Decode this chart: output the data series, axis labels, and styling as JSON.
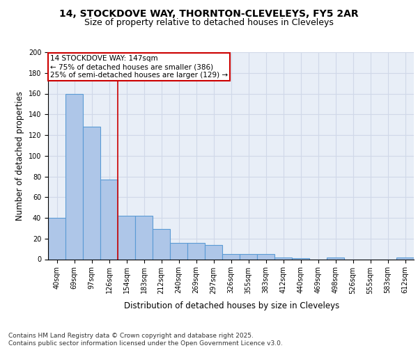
{
  "title1": "14, STOCKDOVE WAY, THORNTON-CLEVELEYS, FY5 2AR",
  "title2": "Size of property relative to detached houses in Cleveleys",
  "xlabel": "Distribution of detached houses by size in Cleveleys",
  "ylabel": "Number of detached properties",
  "categories": [
    "40sqm",
    "69sqm",
    "97sqm",
    "126sqm",
    "154sqm",
    "183sqm",
    "212sqm",
    "240sqm",
    "269sqm",
    "297sqm",
    "326sqm",
    "355sqm",
    "383sqm",
    "412sqm",
    "440sqm",
    "469sqm",
    "498sqm",
    "526sqm",
    "555sqm",
    "583sqm",
    "612sqm"
  ],
  "values": [
    40,
    160,
    128,
    77,
    42,
    42,
    29,
    16,
    16,
    14,
    5,
    5,
    5,
    2,
    1,
    0,
    2,
    0,
    0,
    0,
    2
  ],
  "bar_color": "#aec6e8",
  "bar_edge_color": "#5b9bd5",
  "bar_linewidth": 0.8,
  "vline_x": 3.5,
  "vline_color": "#cc0000",
  "annotation_text": "14 STOCKDOVE WAY: 147sqm\n← 75% of detached houses are smaller (386)\n25% of semi-detached houses are larger (129) →",
  "annotation_box_color": "#cc0000",
  "ylim": [
    0,
    200
  ],
  "yticks": [
    0,
    20,
    40,
    60,
    80,
    100,
    120,
    140,
    160,
    180,
    200
  ],
  "grid_color": "#d0d8e8",
  "background_color": "#e8eef7",
  "footer_text": "Contains HM Land Registry data © Crown copyright and database right 2025.\nContains public sector information licensed under the Open Government Licence v3.0.",
  "title1_fontsize": 10,
  "title2_fontsize": 9,
  "label_fontsize": 8.5,
  "tick_fontsize": 7,
  "footer_fontsize": 6.5,
  "annotation_fontsize": 7.5
}
